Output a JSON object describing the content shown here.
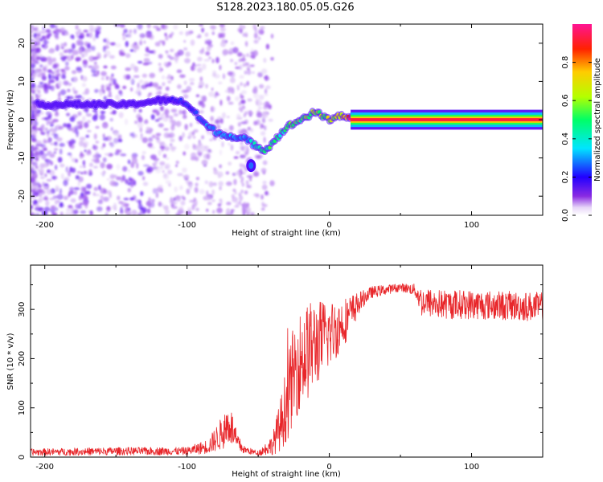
{
  "title": "S128.2023.180.05.05.G26",
  "colors": {
    "snr_line": "#e8262a",
    "frame": "#000000"
  },
  "chart_data": [
    {
      "type": "heatmap",
      "name": "spectrogram",
      "xlabel": "Height of straight line (km)",
      "ylabel": "Frequency (Hz)",
      "xlim": [
        -210,
        150
      ],
      "ylim": [
        -25,
        25
      ],
      "xticks": [
        -200,
        -100,
        0,
        100
      ],
      "yticks": [
        -20,
        -10,
        0,
        10,
        20
      ],
      "colorbar": {
        "label": "Normalized spectral amplitude",
        "range": [
          0,
          1
        ],
        "ticks": [
          "0.0",
          "0.2",
          "0.4",
          "0.6",
          "0.8"
        ],
        "colormap": "hsv-reversed (purple → blue → cyan → green → yellow → red → magenta)"
      },
      "ridge": {
        "x": [
          -200,
          -180,
          -160,
          -140,
          -120,
          -105,
          -100,
          -95,
          -90,
          -85,
          -80,
          -75,
          -70,
          -65,
          -60,
          -55,
          -50,
          -45,
          -40,
          -35,
          -30,
          -25,
          -20,
          -15,
          -10,
          -5,
          0,
          5,
          10,
          15,
          20,
          30,
          50,
          100,
          150
        ],
        "frequency": [
          4,
          4,
          4,
          4,
          5,
          5,
          4,
          2,
          0,
          -2,
          -3,
          -4,
          -4,
          -5,
          -5,
          -6,
          -7,
          -8,
          -6,
          -4,
          -2,
          -1,
          0,
          1,
          2,
          1,
          0,
          1,
          1,
          0.5,
          0.2,
          0,
          0,
          0,
          0
        ],
        "amplitude": [
          0.1,
          0.15,
          0.1,
          0.15,
          0.15,
          0.2,
          0.25,
          0.25,
          0.25,
          0.3,
          0.3,
          0.3,
          0.3,
          0.3,
          0.3,
          0.35,
          0.4,
          0.45,
          0.5,
          0.45,
          0.5,
          0.55,
          0.55,
          0.55,
          0.6,
          0.6,
          0.65,
          0.7,
          0.8,
          0.9,
          1.0,
          1.0,
          1.0,
          1.0,
          1.0
        ]
      },
      "secondary_blob": {
        "x": -55,
        "frequency": -12,
        "amplitude": 0.25
      }
    },
    {
      "type": "line",
      "name": "snr",
      "xlabel": "Height of straight line (km)",
      "ylabel": "SNR (10 * v/v)",
      "xlim": [
        -210,
        150
      ],
      "ylim": [
        0,
        390
      ],
      "xticks": [
        -200,
        -100,
        0,
        100
      ],
      "yticks": [
        0,
        100,
        200,
        300
      ],
      "envelope": {
        "x": [
          -210,
          -150,
          -100,
          -85,
          -75,
          -70,
          -65,
          -60,
          -50,
          -40,
          -35,
          -30,
          -25,
          -20,
          -15,
          -10,
          -5,
          0,
          5,
          10,
          15,
          20,
          25,
          30,
          40,
          50,
          60,
          65,
          80,
          100,
          120,
          150
        ],
        "mean": [
          10,
          12,
          12,
          22,
          50,
          70,
          30,
          15,
          8,
          25,
          60,
          110,
          170,
          200,
          215,
          230,
          240,
          250,
          260,
          275,
          290,
          310,
          325,
          335,
          340,
          345,
          340,
          315,
          310,
          310,
          308,
          305
        ],
        "spread": [
          7,
          8,
          8,
          15,
          35,
          45,
          20,
          8,
          5,
          20,
          50,
          80,
          100,
          100,
          100,
          90,
          80,
          70,
          60,
          50,
          40,
          25,
          15,
          12,
          10,
          8,
          12,
          30,
          30,
          30,
          30,
          30
        ]
      }
    }
  ]
}
